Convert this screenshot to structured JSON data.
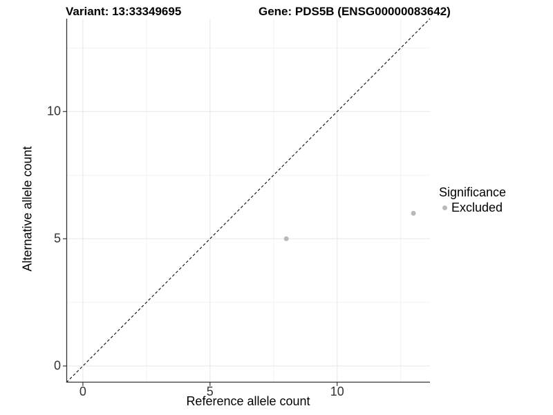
{
  "chart_data": {
    "type": "scatter",
    "titles": {
      "left": "Variant: 13:33349695",
      "right": "Gene: PDS5B (ENSG00000083642)"
    },
    "xlabel": "Reference allele count",
    "ylabel": "Alternative allele count",
    "x_ticks": [
      0,
      5,
      10
    ],
    "y_ticks": [
      0,
      5,
      10
    ],
    "minor_gridlines": [
      2.5,
      7.5,
      12.5
    ],
    "xlim": [
      -0.65,
      13.65
    ],
    "ylim": [
      -0.65,
      13.65
    ],
    "grid": "major+minor",
    "reference_line": {
      "type": "identity",
      "style": "dashed"
    },
    "series": [
      {
        "name": "Excluded",
        "points": [
          [
            8,
            5
          ],
          [
            13,
            6
          ]
        ],
        "point_radius": 3.5
      }
    ],
    "legend": {
      "title": "Significance",
      "position": "right",
      "items": [
        {
          "label": "Excluded",
          "color": "#b9b9b9"
        }
      ]
    },
    "colors": {
      "background": "#ffffff",
      "point": "#b9b9b9",
      "grid_major": "#e5e5e5",
      "grid_minor": "#f2f2f2",
      "axis_line": "#333333",
      "tick_mark": "#333333",
      "tick_text": "#333333",
      "reference_line": "#1a1a1a",
      "title_text": "#000000"
    }
  }
}
